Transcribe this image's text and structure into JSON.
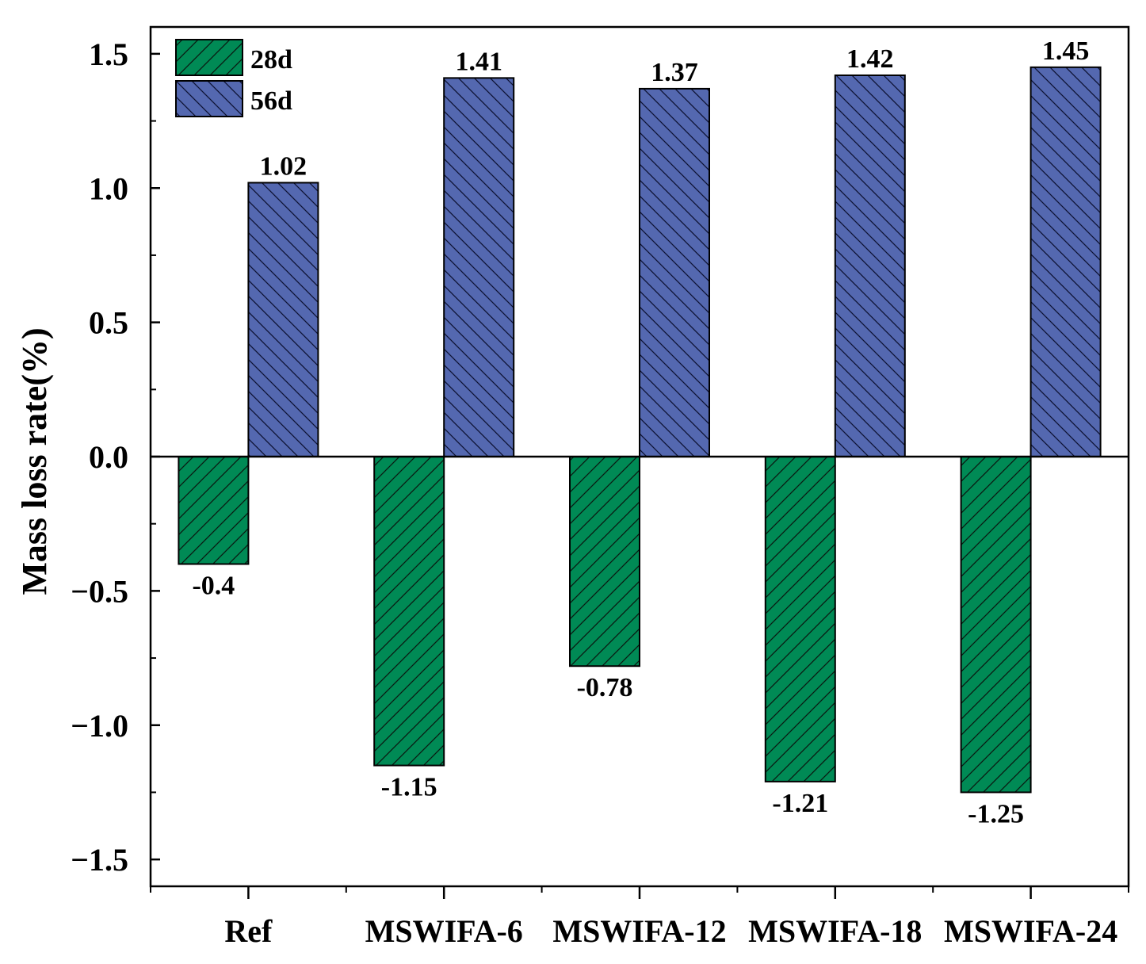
{
  "chart_data": {
    "type": "bar",
    "title": "",
    "xlabel": "",
    "ylabel": "Mass loss rate(%)",
    "ylim": [
      -1.6,
      1.6
    ],
    "categories": [
      "Ref",
      "MSWIFA-6",
      "MSWIFA-12",
      "MSWIFA-18",
      "MSWIFA-24"
    ],
    "series": [
      {
        "name": "28d",
        "color": "#008a55",
        "pattern": "forward-diagonal",
        "values": [
          -0.4,
          -1.15,
          -0.78,
          -1.21,
          -1.25
        ],
        "labels": [
          "-0.4",
          "-1.15",
          "-0.78",
          "-1.21",
          "-1.25"
        ]
      },
      {
        "name": "56d",
        "color": "#5468b0",
        "pattern": "back-diagonal",
        "values": [
          1.02,
          1.41,
          1.37,
          1.42,
          1.45
        ],
        "labels": [
          "1.02",
          "1.41",
          "1.37",
          "1.42",
          "1.45"
        ]
      }
    ],
    "y_ticks": [
      1.5,
      1.0,
      0.5,
      0.0,
      -0.5,
      -1.0,
      -1.5
    ],
    "y_tick_labels": [
      "1.5",
      "1.0",
      "0.5",
      "0.0",
      "−0.5",
      "−1.0",
      "−1.5"
    ],
    "legend": "top-left",
    "grid": false
  }
}
